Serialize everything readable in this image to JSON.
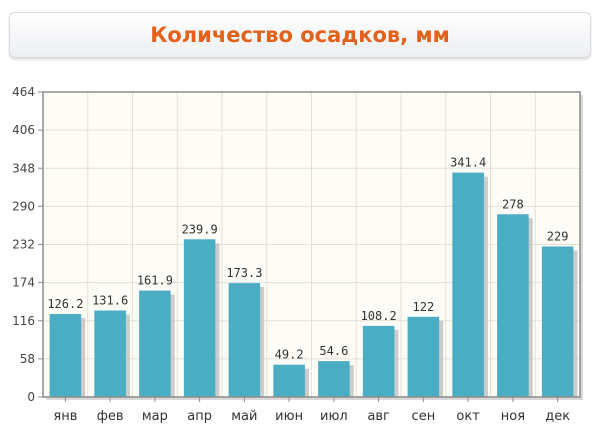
{
  "chart_data": {
    "type": "bar",
    "title": "Количество осадков, мм",
    "categories": [
      "янв",
      "фев",
      "мар",
      "апр",
      "май",
      "июн",
      "июл",
      "авг",
      "сен",
      "окт",
      "ноя",
      "дек"
    ],
    "values": [
      126.2,
      131.6,
      161.9,
      239.9,
      173.3,
      49.2,
      54.6,
      108.2,
      122,
      341.4,
      278,
      229
    ],
    "value_labels": [
      "126.2",
      "131.6",
      "161.9",
      "239.9",
      "173.3",
      "49.2",
      "54.6",
      "108.2",
      "122",
      "341.4",
      "278",
      "229"
    ],
    "ylim": [
      0,
      464
    ],
    "yticks": [
      0,
      58,
      116,
      174,
      232,
      290,
      348,
      406,
      464
    ],
    "grid": true,
    "colors": {
      "bar": "#4badc4",
      "bar_shadow": "#bfbfbf",
      "plot_bg": "#fdfcf7",
      "grid": "#e3e0d6",
      "axis": "#8c8c8c",
      "title": "#e2621b"
    }
  }
}
